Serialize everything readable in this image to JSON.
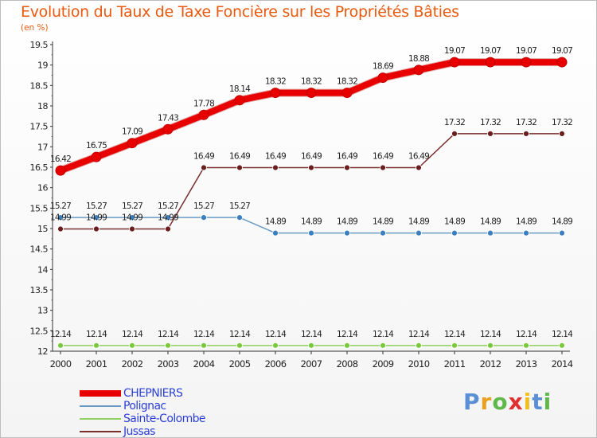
{
  "header": {
    "title": "Evolution du Taux de Taxe Foncière sur les Propriétés Bâties",
    "unit": "(en %)"
  },
  "logo": {
    "letters": [
      "P",
      "r",
      "o",
      "x",
      "i",
      "t",
      "i"
    ],
    "colors": [
      "#5a8fd6",
      "#e8a020",
      "#5fb84a",
      "#e03030",
      "#f0c020",
      "#5a8fd6",
      "#5fb84a"
    ]
  },
  "chart_data": {
    "type": "line",
    "title": "Evolution du Taux de Taxe Foncière sur les Propriétés Bâties",
    "ylabel": "(en %)",
    "xlabel": "",
    "ylim": [
      12,
      19.5
    ],
    "yticks": [
      "12",
      "12.5",
      "13",
      "13.5",
      "14",
      "14.5",
      "15",
      "15.5",
      "16",
      "16.5",
      "17",
      "17.5",
      "18",
      "18.5",
      "19",
      "19.5"
    ],
    "x": [
      "2000",
      "2001",
      "2002",
      "2003",
      "2004",
      "2005",
      "2006",
      "2007",
      "2008",
      "2009",
      "2010",
      "2011",
      "2012",
      "2013",
      "2014"
    ],
    "series": [
      {
        "name": "CHEPNIERS",
        "color": "#e80000",
        "width": 8,
        "marker": 6,
        "values": [
          16.42,
          16.75,
          17.09,
          17.43,
          17.78,
          18.14,
          18.32,
          18.32,
          18.32,
          18.69,
          18.88,
          19.07,
          19.07,
          19.07,
          19.07
        ],
        "labels": [
          "16.42",
          "16.75",
          "17.09",
          "17.43",
          "17.78",
          "18.14",
          "18.32",
          "18.32",
          "18.32",
          "18.69",
          "18.88",
          "19.07",
          "19.07",
          "19.07",
          "19.07"
        ]
      },
      {
        "name": "Polignac",
        "color": "#6a9ac4",
        "width": 1.5,
        "marker": 3.5,
        "markerFill": "#3a7fc0",
        "values": [
          15.27,
          15.27,
          15.27,
          15.27,
          15.27,
          15.27,
          14.89,
          14.89,
          14.89,
          14.89,
          14.89,
          14.89,
          14.89,
          14.89,
          14.89
        ],
        "labels": [
          "15.27",
          "15.27",
          "15.27",
          "15.27",
          "15.27",
          "15.27",
          "14.89",
          "14.89",
          "14.89",
          "14.89",
          "14.89",
          "14.89",
          "14.89",
          "14.89",
          "14.89"
        ]
      },
      {
        "name": "Sainte-Colombe",
        "color": "#8fd060",
        "width": 1.5,
        "marker": 3.5,
        "markerFill": "#7ac83c",
        "values": [
          12.14,
          12.14,
          12.14,
          12.14,
          12.14,
          12.14,
          12.14,
          12.14,
          12.14,
          12.14,
          12.14,
          12.14,
          12.14,
          12.14,
          12.14
        ],
        "labels": [
          "12.14",
          "12.14",
          "12.14",
          "12.14",
          "12.14",
          "12.14",
          "12.14",
          "12.14",
          "12.14",
          "12.14",
          "12.14",
          "12.14",
          "12.14",
          "12.14",
          "12.14"
        ]
      },
      {
        "name": "Jussas",
        "color": "#7a2e2e",
        "width": 1.5,
        "marker": 3.5,
        "markerFill": "#6a1e1e",
        "values": [
          14.99,
          14.99,
          14.99,
          14.99,
          16.49,
          16.49,
          16.49,
          16.49,
          16.49,
          16.49,
          16.49,
          17.32,
          17.32,
          17.32,
          17.32
        ],
        "labels": [
          "14.99",
          "14.99",
          "14.99",
          "14.99",
          "16.49",
          "16.49",
          "16.49",
          "16.49",
          "16.49",
          "16.49",
          "16.49",
          "17.32",
          "17.32",
          "17.32",
          "17.32"
        ]
      }
    ],
    "legend": [
      "CHEPNIERS",
      "Polignac",
      "Sainte-Colombe",
      "Jussas"
    ],
    "legend_position": "bottom-left",
    "grid": false
  }
}
